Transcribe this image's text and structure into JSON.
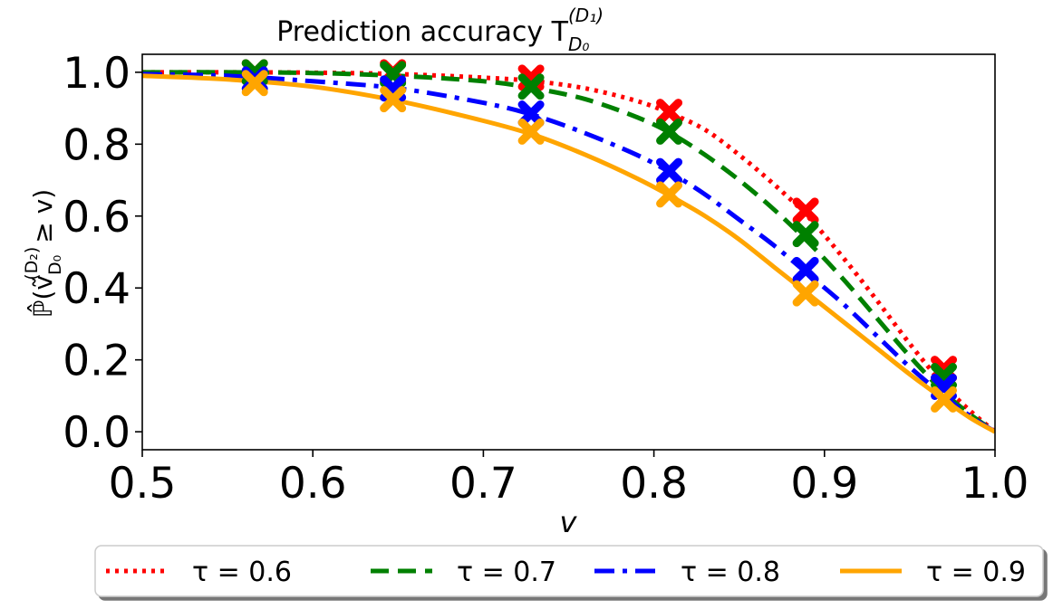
{
  "chart_data": {
    "type": "line",
    "title": "Prediction accuracy T",
    "title_sup": "(D₁)",
    "title_sub": "D₀",
    "xlabel": "v",
    "ylabel": "ℙ̂(ṽ",
    "ylabel_sup": "(D₂)",
    "ylabel_sub": "D₀",
    "ylabel_tail": "≥ v)",
    "xlim": [
      0.5,
      1.0
    ],
    "ylim": [
      -0.05,
      1.05
    ],
    "xticks": [
      "0.5",
      "0.6",
      "0.7",
      "0.8",
      "0.9",
      "1.0"
    ],
    "yticks": [
      "0.0",
      "0.2",
      "0.4",
      "0.6",
      "0.8",
      "1.0"
    ],
    "legend_position": "bottom-center",
    "series": [
      {
        "name": "τ = 0.6",
        "color": "#ff0000",
        "linestyle": "dotted",
        "curve_x": [
          0.5,
          0.55,
          0.6,
          0.65,
          0.7,
          0.73,
          0.76,
          0.79,
          0.81,
          0.83,
          0.85,
          0.87,
          0.89,
          0.91,
          0.93,
          0.95,
          0.97,
          0.985,
          1.0
        ],
        "curve_y": [
          1.0,
          1.0,
          0.999,
          0.995,
          0.985,
          0.975,
          0.955,
          0.92,
          0.885,
          0.84,
          0.77,
          0.69,
          0.6,
          0.49,
          0.37,
          0.245,
          0.13,
          0.06,
          0.0
        ],
        "marker_x": [
          0.566,
          0.647,
          0.728,
          0.809,
          0.889,
          0.97
        ],
        "marker_y": [
          1.0,
          1.0,
          0.985,
          0.89,
          0.615,
          0.175
        ]
      },
      {
        "name": "τ = 0.7",
        "color": "#008000",
        "linestyle": "dashed",
        "curve_x": [
          0.5,
          0.55,
          0.6,
          0.65,
          0.7,
          0.73,
          0.76,
          0.79,
          0.81,
          0.83,
          0.85,
          0.87,
          0.89,
          0.91,
          0.93,
          0.95,
          0.97,
          0.985,
          1.0
        ],
        "curve_y": [
          1.0,
          1.0,
          0.998,
          0.99,
          0.975,
          0.955,
          0.925,
          0.875,
          0.83,
          0.77,
          0.7,
          0.62,
          0.53,
          0.43,
          0.32,
          0.21,
          0.11,
          0.05,
          0.0
        ],
        "marker_x": [
          0.566,
          0.647,
          0.728,
          0.809,
          0.889,
          0.97
        ],
        "marker_y": [
          1.0,
          0.995,
          0.96,
          0.835,
          0.55,
          0.155
        ]
      },
      {
        "name": "τ = 0.8",
        "color": "#0000ff",
        "linestyle": "dashdot",
        "curve_x": [
          0.5,
          0.55,
          0.6,
          0.65,
          0.7,
          0.73,
          0.76,
          0.79,
          0.81,
          0.83,
          0.85,
          0.87,
          0.89,
          0.91,
          0.93,
          0.95,
          0.97,
          0.985,
          1.0
        ],
        "curve_y": [
          0.995,
          0.99,
          0.975,
          0.955,
          0.915,
          0.88,
          0.83,
          0.77,
          0.72,
          0.66,
          0.59,
          0.52,
          0.44,
          0.36,
          0.27,
          0.18,
          0.1,
          0.045,
          0.0
        ],
        "marker_x": [
          0.566,
          0.647,
          0.728,
          0.809,
          0.889,
          0.97
        ],
        "marker_y": [
          0.98,
          0.955,
          0.885,
          0.725,
          0.45,
          0.125
        ]
      },
      {
        "name": "τ = 0.9",
        "color": "#ffa500",
        "linestyle": "solid",
        "curve_x": [
          0.5,
          0.55,
          0.6,
          0.65,
          0.7,
          0.73,
          0.76,
          0.79,
          0.81,
          0.83,
          0.85,
          0.87,
          0.89,
          0.91,
          0.93,
          0.95,
          0.97,
          0.985,
          1.0
        ],
        "curve_y": [
          0.99,
          0.98,
          0.96,
          0.92,
          0.865,
          0.825,
          0.77,
          0.705,
          0.655,
          0.6,
          0.535,
          0.46,
          0.385,
          0.31,
          0.235,
          0.16,
          0.09,
          0.04,
          0.0
        ],
        "marker_x": [
          0.566,
          0.647,
          0.728,
          0.809,
          0.889,
          0.97
        ],
        "marker_y": [
          0.97,
          0.925,
          0.835,
          0.66,
          0.385,
          0.09
        ]
      }
    ]
  }
}
